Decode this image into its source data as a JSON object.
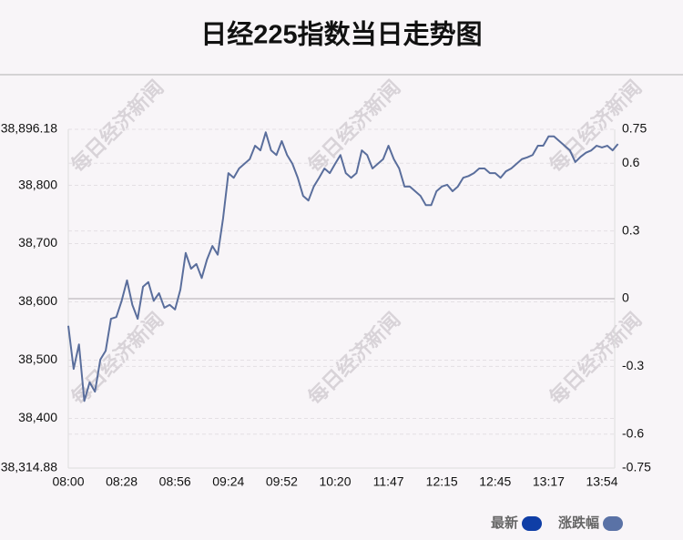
{
  "chart_data": {
    "type": "line",
    "title": "日经225指数当日走势图",
    "watermark": "每日经济新闻",
    "categories": [
      "08:00",
      null,
      null,
      null,
      null,
      null,
      null,
      null,
      null,
      null,
      "08:28",
      null,
      null,
      null,
      null,
      null,
      null,
      null,
      null,
      null,
      "08:56",
      null,
      null,
      null,
      null,
      null,
      null,
      null,
      null,
      null,
      "09:24",
      null,
      null,
      null,
      null,
      null,
      null,
      null,
      null,
      null,
      "09:52",
      null,
      null,
      null,
      null,
      null,
      null,
      null,
      null,
      null,
      "10:20",
      null,
      null,
      null,
      null,
      null,
      null,
      null,
      null,
      null,
      "11:47",
      null,
      null,
      null,
      null,
      null,
      null,
      null,
      null,
      null,
      "12:15",
      null,
      null,
      null,
      null,
      null,
      null,
      null,
      null,
      null,
      "12:45",
      null,
      null,
      null,
      null,
      null,
      null,
      null,
      null,
      null,
      "13:17",
      null,
      null,
      null,
      null,
      null,
      null,
      null,
      null,
      null,
      "13:54",
      null,
      null,
      null
    ],
    "series": [
      {
        "name": "最新",
        "color": "#5a6e9c",
        "values": [
          38559,
          38485,
          38527,
          38430,
          38462,
          38446,
          38501,
          38516,
          38571,
          38574,
          38602,
          38637,
          38595,
          38571,
          38626,
          38634,
          38602,
          38615,
          38590,
          38595,
          38587,
          38621,
          38684,
          38657,
          38665,
          38641,
          38673,
          38696,
          38681,
          38743,
          38821,
          38813,
          38829,
          38837,
          38845,
          38868,
          38860,
          38891,
          38860,
          38852,
          38876,
          38852,
          38837,
          38813,
          38782,
          38774,
          38798,
          38813,
          38829,
          38821,
          38837,
          38852,
          38821,
          38813,
          38821,
          38860,
          38852,
          38829,
          38837,
          38845,
          38868,
          38845,
          38829,
          38798,
          38798,
          38790,
          38782,
          38766,
          38766,
          38790,
          38798,
          38801,
          38790,
          38798,
          38813,
          38816,
          38821,
          38829,
          38829,
          38821,
          38821,
          38813,
          38824,
          38829,
          38837,
          38845,
          38848,
          38852,
          38868,
          38868,
          38884,
          38884,
          38876,
          38868,
          38860,
          38840,
          38849,
          38856,
          38860,
          38868,
          38865,
          38868,
          38860,
          38871
        ]
      }
    ],
    "legend": [
      {
        "name": "最新",
        "color": "#0f3ea6"
      },
      {
        "name": "涨跌幅",
        "color": "#5a72a6"
      }
    ],
    "ylim": [
      38314.88,
      38896.18
    ],
    "yticks": [
      {
        "value": 38314.88,
        "label": "38,314.88"
      },
      {
        "value": 38400,
        "label": "38,400"
      },
      {
        "value": 38500,
        "label": "38,500"
      },
      {
        "value": 38600,
        "label": "38,600"
      },
      {
        "value": 38700,
        "label": "38,700"
      },
      {
        "value": 38800,
        "label": "38,800"
      },
      {
        "value": 38896.18,
        "label": "38,896.18"
      }
    ],
    "y2lim": [
      -0.75,
      0.75
    ],
    "y2ticks": [
      -0.75,
      -0.6,
      -0.3,
      0,
      0.3,
      0.6,
      0.75
    ],
    "grid": true
  }
}
